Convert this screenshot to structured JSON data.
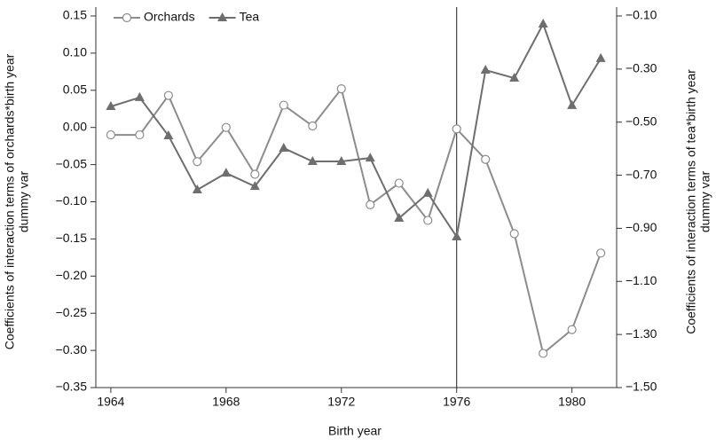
{
  "chart_data": {
    "type": "line",
    "x": [
      1964,
      1965,
      1966,
      1967,
      1968,
      1969,
      1970,
      1971,
      1972,
      1973,
      1974,
      1975,
      1976,
      1977,
      1978,
      1979,
      1980,
      1981
    ],
    "series": [
      {
        "name": "Orchards",
        "color": "#8c8c8c",
        "marker": "circle",
        "values": [
          -0.01,
          -0.01,
          0.043,
          -0.046,
          0,
          -0.063,
          0.03,
          0.002,
          0.052,
          -0.104,
          -0.075,
          -0.125,
          -0.002,
          -0.043,
          -0.143,
          -0.304,
          -0.272,
          -0.169
        ]
      },
      {
        "name": "Tea",
        "color": "#6e6e6e",
        "marker": "triangle",
        "axis": "y2",
        "values": [
          -0.441,
          -0.407,
          -0.551,
          -0.755,
          -0.692,
          -0.742,
          -0.598,
          -0.648,
          -0.648,
          -0.635,
          -0.862,
          -0.768,
          -0.932,
          -0.304,
          -0.334,
          -0.13,
          -0.437,
          -0.26
        ]
      }
    ],
    "xlabel": "Birth year",
    "ylabel": [
      "Coefficients of interaction terms of orchards*birth year",
      "dummy var"
    ],
    "y2label": [
      "Coefficients of interaction terms of tea*birth year",
      "dummy var"
    ],
    "xlim": [
      1963.48,
      1981.55
    ],
    "xticks": [
      1964,
      1968,
      1972,
      1976,
      1980
    ],
    "ylim": [
      -0.35,
      0.15
    ],
    "yticks": [
      {
        "value": 0.15,
        "label": "0.15"
      },
      {
        "value": 0.1,
        "label": "0.10"
      },
      {
        "value": 0.05,
        "label": "0.05"
      },
      {
        "value": 0,
        "label": "0.00"
      },
      {
        "value": -0.05,
        "label": "−0.05"
      },
      {
        "value": -0.1,
        "label": "−0.10"
      },
      {
        "value": -0.15,
        "label": "−0.15"
      },
      {
        "value": -0.2,
        "label": "−0.20"
      },
      {
        "value": -0.25,
        "label": "−0.25"
      },
      {
        "value": -0.3,
        "label": "−0.30"
      },
      {
        "value": -0.35,
        "label": "−0.35"
      }
    ],
    "y2lim": [
      -1.5,
      -0.1
    ],
    "y2ticks": [
      {
        "value": -0.1,
        "label": "−0.10"
      },
      {
        "value": -0.3,
        "label": "−0.30"
      },
      {
        "value": -0.5,
        "label": "−0.50"
      },
      {
        "value": -0.7,
        "label": "−0.70"
      },
      {
        "value": -0.9,
        "label": "−0.90"
      },
      {
        "value": -1.1,
        "label": "−1.10"
      },
      {
        "value": -1.3,
        "label": "−1.30"
      },
      {
        "value": -1.5,
        "label": "−1.50"
      }
    ],
    "vline_x": 1976,
    "legend": "top-left",
    "grid": false
  }
}
